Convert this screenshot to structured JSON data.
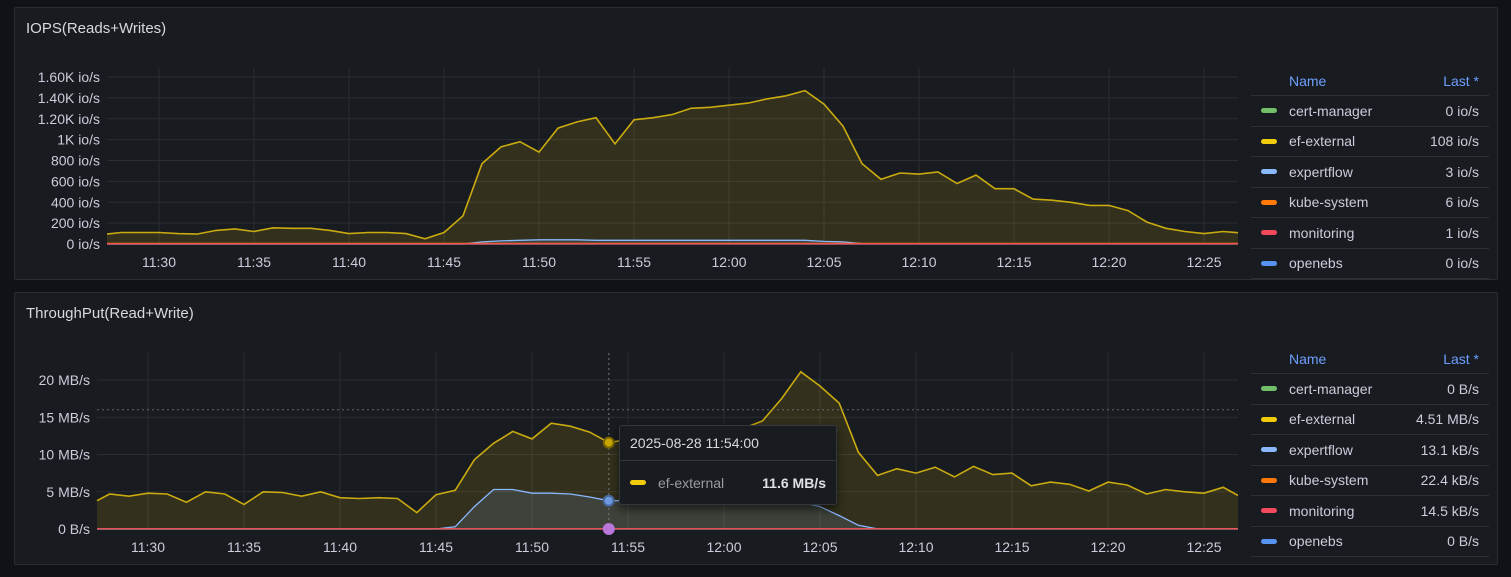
{
  "panels": [
    {
      "title": "IOPS(Reads+Writes)",
      "legend_header": {
        "name": "Name",
        "last": "Last *"
      },
      "legend": [
        {
          "name": "cert-manager",
          "last": "0 io/s",
          "color": "#73bf69"
        },
        {
          "name": "ef-external",
          "last": "108 io/s",
          "color": "#f2cc0c"
        },
        {
          "name": "expertflow",
          "last": "3 io/s",
          "color": "#8ab8ff"
        },
        {
          "name": "kube-system",
          "last": "6 io/s",
          "color": "#ff780a"
        },
        {
          "name": "monitoring",
          "last": "1 io/s",
          "color": "#f2495c"
        },
        {
          "name": "openebs",
          "last": "0 io/s",
          "color": "#5794f2"
        }
      ]
    },
    {
      "title": "ThroughPut(Read+Write)",
      "legend_header": {
        "name": "Name",
        "last": "Last *"
      },
      "legend": [
        {
          "name": "cert-manager",
          "last": "0 B/s",
          "color": "#73bf69"
        },
        {
          "name": "ef-external",
          "last": "4.51 MB/s",
          "color": "#f2cc0c"
        },
        {
          "name": "expertflow",
          "last": "13.1 kB/s",
          "color": "#8ab8ff"
        },
        {
          "name": "kube-system",
          "last": "22.4 kB/s",
          "color": "#ff780a"
        },
        {
          "name": "monitoring",
          "last": "14.5 kB/s",
          "color": "#f2495c"
        },
        {
          "name": "openebs",
          "last": "0 B/s",
          "color": "#5794f2"
        }
      ]
    }
  ],
  "tooltip": {
    "time": "2025-08-28 11:54:00",
    "series": "ef-external",
    "value": "11.6 MB/s",
    "at": "11:54"
  },
  "chart_data": [
    {
      "type": "area",
      "title": "IOPS(Reads+Writes)",
      "unit": "io/s",
      "grid": true,
      "legend": "right",
      "ylim": [
        0,
        1600
      ],
      "yticks": [
        0,
        200,
        400,
        600,
        800,
        1000,
        1200,
        1400,
        1600
      ],
      "ytick_labels": [
        "0 io/s",
        "200 io/s",
        "400 io/s",
        "600 io/s",
        "800 io/s",
        "1K io/s",
        "1.20K io/s",
        "1.40K io/s",
        "1.60K io/s"
      ],
      "xtick_labels": [
        "11:30",
        "11:35",
        "11:40",
        "11:45",
        "11:50",
        "11:55",
        "12:00",
        "12:05",
        "12:10",
        "12:15",
        "12:20",
        "12:25"
      ],
      "series": [
        {
          "name": "ef-external",
          "color": "#f2cc0c",
          "values": [
            95,
            110,
            110,
            110,
            100,
            95,
            130,
            145,
            120,
            155,
            150,
            150,
            130,
            100,
            110,
            110,
            100,
            50,
            110,
            270,
            770,
            930,
            980,
            880,
            1110,
            1170,
            1210,
            960,
            1190,
            1210,
            1240,
            1300,
            1310,
            1330,
            1350,
            1390,
            1420,
            1470,
            1340,
            1130,
            770,
            620,
            680,
            670,
            690,
            580,
            660,
            530,
            530,
            430,
            420,
            400,
            370,
            370,
            320,
            210,
            150,
            120,
            100,
            120,
            108
          ]
        },
        {
          "name": "expertflow",
          "color": "#8ab8ff",
          "values": [
            0,
            0,
            0,
            0,
            0,
            0,
            0,
            0,
            0,
            0,
            0,
            0,
            0,
            0,
            0,
            0,
            0,
            0,
            0,
            0,
            20,
            30,
            35,
            40,
            40,
            40,
            35,
            35,
            35,
            35,
            35,
            35,
            35,
            35,
            35,
            35,
            35,
            35,
            25,
            20,
            3,
            3,
            3,
            3,
            3,
            3,
            3,
            3,
            3,
            3,
            3,
            3,
            3,
            3,
            3,
            3,
            3,
            3,
            3,
            3,
            3
          ]
        },
        {
          "name": "cert-manager",
          "color": "#73bf69",
          "values": [
            0,
            0,
            0,
            0,
            0,
            0,
            0,
            0,
            0,
            0,
            0,
            0,
            0,
            0,
            0,
            0,
            0,
            0,
            0,
            0,
            0,
            0,
            0,
            0,
            0,
            0,
            0,
            0,
            0,
            0,
            0,
            0,
            0,
            0,
            0,
            0,
            0,
            0,
            0,
            0,
            0,
            0,
            0,
            0,
            0,
            0,
            0,
            0,
            0,
            0,
            0,
            0,
            0,
            0,
            0,
            0,
            0,
            0,
            0,
            0,
            0
          ]
        },
        {
          "name": "openebs",
          "color": "#5794f2",
          "values": [
            0,
            0,
            0,
            0,
            0,
            0,
            0,
            0,
            0,
            0,
            0,
            0,
            0,
            0,
            0,
            0,
            0,
            0,
            0,
            0,
            0,
            0,
            0,
            0,
            0,
            0,
            0,
            0,
            0,
            0,
            0,
            0,
            0,
            0,
            0,
            0,
            0,
            0,
            0,
            0,
            0,
            0,
            0,
            0,
            0,
            0,
            0,
            0,
            0,
            0,
            0,
            0,
            0,
            0,
            0,
            0,
            0,
            0,
            0,
            0,
            0
          ]
        },
        {
          "name": "kube-system",
          "color": "#ff780a",
          "values": [
            6,
            6,
            6,
            6,
            6,
            6,
            6,
            6,
            6,
            6,
            6,
            6,
            6,
            6,
            6,
            6,
            6,
            6,
            6,
            6,
            6,
            6,
            6,
            6,
            6,
            6,
            6,
            6,
            6,
            6,
            6,
            6,
            6,
            6,
            6,
            6,
            6,
            6,
            6,
            6,
            6,
            6,
            6,
            6,
            6,
            6,
            6,
            6,
            6,
            6,
            6,
            6,
            6,
            6,
            6,
            6,
            6,
            6,
            6,
            6,
            6
          ]
        },
        {
          "name": "monitoring",
          "color": "#f2495c",
          "values": [
            1,
            1,
            1,
            1,
            1,
            1,
            1,
            1,
            1,
            1,
            1,
            1,
            1,
            1,
            1,
            1,
            1,
            1,
            1,
            1,
            1,
            1,
            1,
            1,
            1,
            1,
            1,
            1,
            1,
            1,
            1,
            1,
            1,
            1,
            1,
            1,
            1,
            1,
            1,
            1,
            1,
            1,
            1,
            1,
            1,
            1,
            1,
            1,
            1,
            1,
            1,
            1,
            1,
            1,
            1,
            1,
            1,
            1,
            1,
            1,
            1
          ]
        }
      ]
    },
    {
      "type": "area",
      "title": "ThroughPut(Read+Write)",
      "unit": "MB/s",
      "grid": true,
      "legend": "right",
      "ylim": [
        0,
        20
      ],
      "yticks": [
        0,
        5,
        10,
        15,
        20
      ],
      "ytick_labels": [
        "0 B/s",
        "5 MB/s",
        "10 MB/s",
        "15 MB/s",
        "20 MB/s"
      ],
      "xtick_labels": [
        "11:30",
        "11:35",
        "11:40",
        "11:45",
        "11:50",
        "11:55",
        "12:00",
        "12:05",
        "12:10",
        "12:15",
        "12:20",
        "12:25"
      ],
      "series": [
        {
          "name": "ef-external",
          "color": "#f2cc0c",
          "values": [
            3.8,
            4.7,
            4.4,
            4.8,
            4.7,
            3.6,
            5.0,
            4.7,
            3.3,
            5.0,
            4.9,
            4.4,
            5.0,
            4.2,
            4.1,
            4.2,
            4.1,
            2.2,
            4.6,
            5.2,
            9.3,
            11.5,
            13.1,
            12.1,
            14.2,
            13.8,
            13.0,
            11.6,
            12.0,
            11.5,
            12.5,
            12.0,
            11.8,
            12.5,
            13.5,
            14.5,
            17.5,
            21.1,
            19.2,
            16.9,
            10.3,
            7.2,
            8.1,
            7.5,
            8.3,
            7.0,
            8.4,
            7.3,
            7.5,
            5.8,
            6.3,
            6.0,
            5.1,
            6.3,
            5.9,
            4.7,
            5.3,
            5.0,
            4.8,
            5.6,
            4.51
          ]
        },
        {
          "name": "expertflow",
          "color": "#8ab8ff",
          "values": [
            0,
            0,
            0,
            0,
            0,
            0,
            0,
            0,
            0,
            0,
            0,
            0,
            0,
            0,
            0,
            0,
            0,
            0,
            0,
            0.3,
            3.0,
            5.3,
            5.3,
            4.8,
            4.8,
            4.7,
            4.3,
            3.8,
            3.8,
            3.8,
            3.8,
            3.9,
            3.9,
            3.9,
            3.9,
            3.9,
            3.8,
            3.6,
            3.0,
            1.8,
            0.5,
            0.013,
            0.013,
            0.013,
            0.013,
            0.013,
            0.013,
            0.013,
            0.013,
            0.013,
            0.013,
            0.013,
            0.013,
            0.013,
            0.013,
            0.013,
            0.013,
            0.013,
            0.013,
            0.013,
            0.013
          ]
        },
        {
          "name": "cert-manager",
          "color": "#73bf69",
          "values": [
            0,
            0,
            0,
            0,
            0,
            0,
            0,
            0,
            0,
            0,
            0,
            0,
            0,
            0,
            0,
            0,
            0,
            0,
            0,
            0,
            0,
            0,
            0,
            0,
            0,
            0,
            0,
            0,
            0,
            0,
            0,
            0,
            0,
            0,
            0,
            0,
            0,
            0,
            0,
            0,
            0,
            0,
            0,
            0,
            0,
            0,
            0,
            0,
            0,
            0,
            0,
            0,
            0,
            0,
            0,
            0,
            0,
            0,
            0,
            0,
            0
          ]
        },
        {
          "name": "openebs",
          "color": "#5794f2",
          "values": [
            0,
            0,
            0,
            0,
            0,
            0,
            0,
            0,
            0,
            0,
            0,
            0,
            0,
            0,
            0,
            0,
            0,
            0,
            0,
            0,
            0,
            0,
            0,
            0,
            0,
            0,
            0,
            0,
            0,
            0,
            0,
            0,
            0,
            0,
            0,
            0,
            0,
            0,
            0,
            0,
            0,
            0,
            0,
            0,
            0,
            0,
            0,
            0,
            0,
            0,
            0,
            0,
            0,
            0,
            0,
            0,
            0,
            0,
            0,
            0,
            0
          ]
        },
        {
          "name": "kube-system",
          "color": "#ff780a",
          "values": [
            0.02,
            0.02,
            0.02,
            0.02,
            0.02,
            0.02,
            0.02,
            0.02,
            0.02,
            0.02,
            0.02,
            0.02,
            0.02,
            0.02,
            0.02,
            0.02,
            0.02,
            0.02,
            0.02,
            0.02,
            0.02,
            0.02,
            0.02,
            0.02,
            0.02,
            0.02,
            0.02,
            0.02,
            0.02,
            0.02,
            0.02,
            0.02,
            0.02,
            0.02,
            0.02,
            0.02,
            0.02,
            0.02,
            0.02,
            0.02,
            0.02,
            0.02,
            0.02,
            0.02,
            0.02,
            0.02,
            0.02,
            0.02,
            0.02,
            0.02,
            0.02,
            0.02,
            0.02,
            0.02,
            0.02,
            0.02,
            0.02,
            0.02,
            0.02,
            0.02,
            0.0224
          ]
        },
        {
          "name": "monitoring",
          "color": "#f2495c",
          "values": [
            0.015,
            0.015,
            0.015,
            0.015,
            0.015,
            0.015,
            0.015,
            0.015,
            0.015,
            0.015,
            0.015,
            0.015,
            0.015,
            0.015,
            0.015,
            0.015,
            0.015,
            0.015,
            0.015,
            0.015,
            0.015,
            0.015,
            0.015,
            0.015,
            0.015,
            0.015,
            0.015,
            0.015,
            0.015,
            0.015,
            0.015,
            0.015,
            0.015,
            0.015,
            0.015,
            0.015,
            0.015,
            0.015,
            0.015,
            0.015,
            0.015,
            0.015,
            0.015,
            0.015,
            0.015,
            0.015,
            0.015,
            0.015,
            0.015,
            0.015,
            0.015,
            0.015,
            0.015,
            0.015,
            0.015,
            0.015,
            0.015,
            0.015,
            0.015,
            0.015,
            0.0145
          ]
        }
      ]
    }
  ],
  "x": [
    "11:27",
    "11:28",
    "11:29",
    "11:30",
    "11:31",
    "11:32",
    "11:33",
    "11:34",
    "11:35",
    "11:36",
    "11:37",
    "11:38",
    "11:39",
    "11:40",
    "11:41",
    "11:42",
    "11:43",
    "11:44",
    "11:45",
    "11:46",
    "11:47",
    "11:48",
    "11:49",
    "11:50",
    "11:51",
    "11:52",
    "11:53",
    "11:54",
    "11:55",
    "11:56",
    "11:57",
    "11:58",
    "11:59",
    "12:00",
    "12:01",
    "12:02",
    "12:03",
    "12:04",
    "12:05",
    "12:06",
    "12:07",
    "12:08",
    "12:09",
    "12:10",
    "12:11",
    "12:12",
    "12:13",
    "12:14",
    "12:15",
    "12:16",
    "12:17",
    "12:18",
    "12:19",
    "12:20",
    "12:21",
    "12:22",
    "12:23",
    "12:24",
    "12:25",
    "12:26",
    "12:27"
  ]
}
